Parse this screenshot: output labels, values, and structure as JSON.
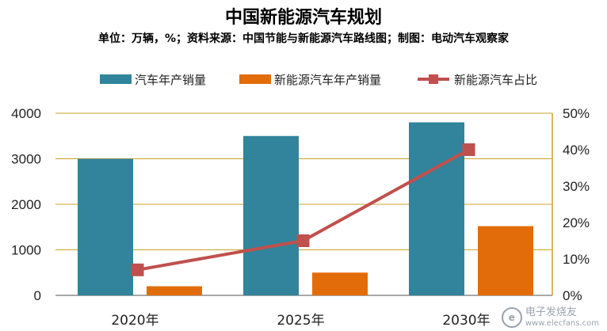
{
  "chart_data": {
    "type": "bar",
    "title": "中国新能源汽车规划",
    "subtitle": "单位：万辆，%；资料来源：中国节能与新能源汽车路线图；制图：电动汽车观察家",
    "categories": [
      "2020年",
      "2025年",
      "2030年"
    ],
    "series": [
      {
        "name": "汽车年产销量",
        "type": "bar",
        "axis": "left",
        "color": "#31849b",
        "values": [
          3000,
          3500,
          3800
        ]
      },
      {
        "name": "新能源汽车年产销量",
        "type": "bar",
        "axis": "left",
        "color": "#e36c0a",
        "values": [
          200,
          500,
          1520
        ]
      },
      {
        "name": "新能源汽车占比",
        "type": "line",
        "axis": "right",
        "color": "#c0504d",
        "values": [
          7,
          15,
          40
        ]
      }
    ],
    "ylim": [
      0,
      4000
    ],
    "yticks": [
      "0",
      "1000",
      "2000",
      "3000",
      "4000"
    ],
    "y2lim": [
      0,
      50
    ],
    "y2ticks": [
      "0%",
      "10%",
      "20%",
      "30%",
      "40%",
      "50%"
    ],
    "legend_position": "top",
    "grid": true,
    "gridColor": "#c9a227"
  },
  "watermark": {
    "logo": "e",
    "name": "电子发烧友",
    "url": "www.elecfans.com"
  }
}
